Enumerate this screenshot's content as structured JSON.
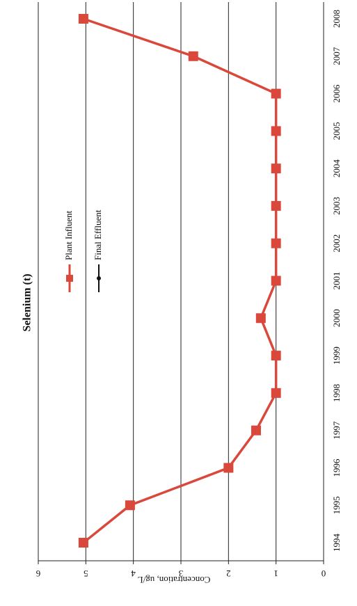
{
  "chart_data": {
    "type": "line",
    "title": "Selenium (t)",
    "y_label": "Concentration, ug/L",
    "categories": [
      "1994",
      "1995",
      "1996",
      "1997",
      "1998",
      "1999",
      "2000",
      "2001",
      "2002",
      "2003",
      "2004",
      "2005",
      "2006",
      "2007",
      "2008"
    ],
    "series": [
      {
        "name": "Plant Influent",
        "color": "#d9483b",
        "values": [
          5.05,
          4.07,
          2.0,
          1.42,
          1.0,
          1.0,
          1.32,
          1.0,
          1.0,
          1.0,
          1.0,
          1.0,
          1.0,
          2.74,
          5.05
        ]
      },
      {
        "name": "Final Effluent",
        "color": "#111111",
        "values": [
          null,
          null,
          null,
          null,
          null,
          null,
          null,
          null,
          null,
          null,
          null,
          null,
          null,
          null,
          null
        ]
      }
    ],
    "ylim": [
      0,
      6
    ],
    "yticks": [
      0,
      1,
      2,
      3,
      4,
      5,
      6
    ],
    "grid": true
  }
}
